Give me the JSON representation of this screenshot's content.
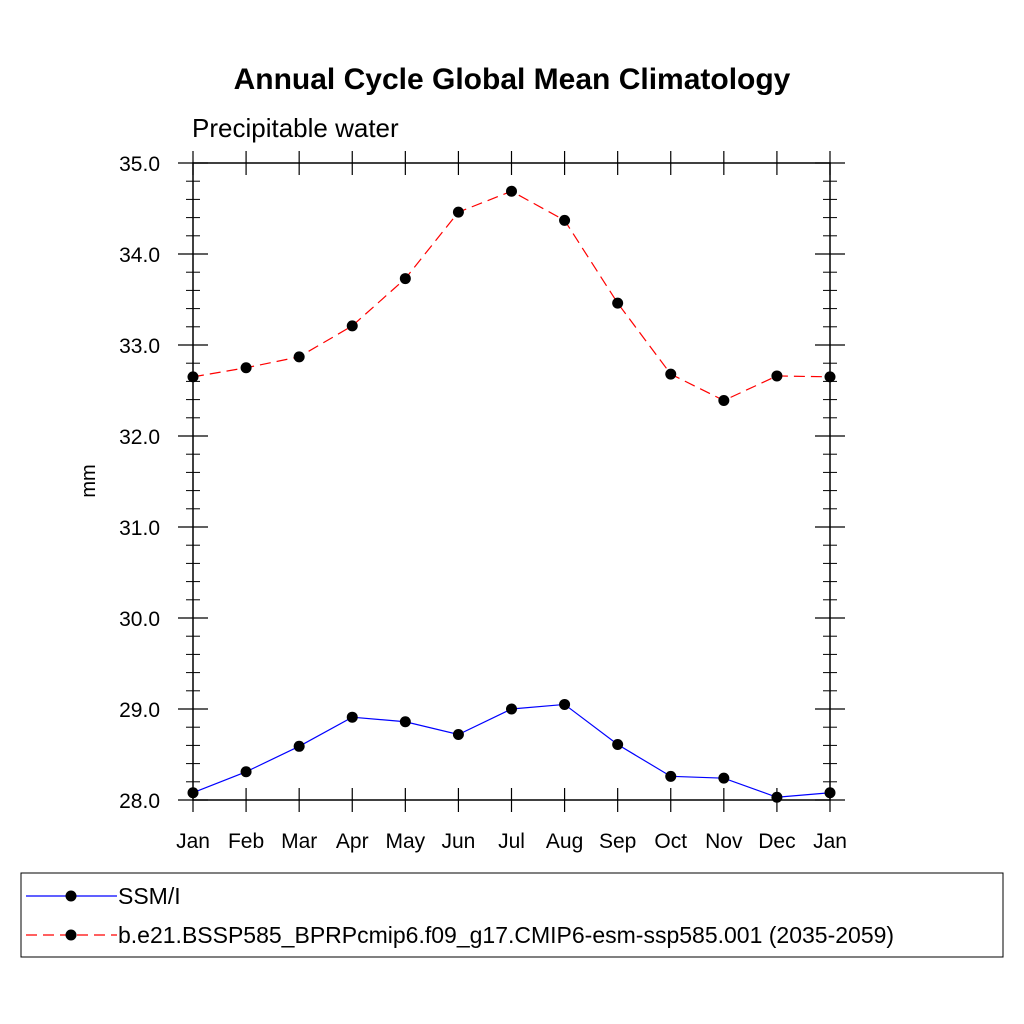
{
  "chart_data": {
    "type": "line",
    "title": "Annual Cycle Global Mean Climatology",
    "subtitle": "Precipitable water",
    "xlabel": "",
    "ylabel": "mm",
    "categories": [
      "Jan",
      "Feb",
      "Mar",
      "Apr",
      "May",
      "Jun",
      "Jul",
      "Aug",
      "Sep",
      "Oct",
      "Nov",
      "Dec",
      "Jan"
    ],
    "ylim": [
      28.0,
      35.0
    ],
    "yticks": [
      "28.0",
      "29.0",
      "30.0",
      "31.0",
      "32.0",
      "33.0",
      "34.0",
      "35.0"
    ],
    "series": [
      {
        "name": "SSM/I",
        "color": "#0000ff",
        "dash": "solid",
        "values": [
          28.08,
          28.31,
          28.59,
          28.91,
          28.86,
          28.72,
          29.0,
          29.05,
          28.61,
          28.26,
          28.24,
          28.03,
          28.08
        ]
      },
      {
        "name": "b.e21.BSSP585_BPRPcmip6.f09_g17.CMIP6-esm-ssp585.001 (2035-2059)",
        "color": "#ff0000",
        "dash": "dashed",
        "values": [
          32.65,
          32.75,
          32.87,
          33.21,
          33.73,
          34.46,
          34.69,
          34.37,
          33.46,
          32.68,
          32.39,
          32.66,
          32.65
        ]
      }
    ],
    "legend_position": "bottom",
    "grid": false
  }
}
